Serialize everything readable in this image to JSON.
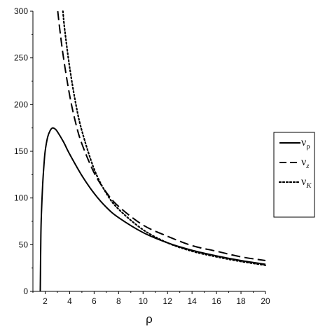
{
  "chart_data": {
    "type": "line",
    "title": "",
    "xlabel": "ρ",
    "ylabel": "",
    "xlim": [
      1,
      20
    ],
    "ylim": [
      0,
      300
    ],
    "xticks": [
      2,
      4,
      6,
      8,
      10,
      12,
      14,
      16,
      18,
      20
    ],
    "yticks": [
      0,
      50,
      100,
      150,
      200,
      250,
      300
    ],
    "grid": false,
    "legend_position": "right",
    "series": [
      {
        "name": "ν",
        "subscript": "ρ",
        "style": "solid",
        "color": "#000000",
        "x": [
          1.6,
          1.65,
          1.7,
          1.8,
          1.9,
          2.0,
          2.2,
          2.4,
          2.6,
          2.8,
          3.0,
          3.5,
          4.0,
          5.0,
          6.0,
          7.0,
          8.0,
          10.0,
          12.0,
          14.0,
          16.0,
          18.0,
          20.0
        ],
        "y": [
          0,
          60,
          85,
          115,
          135,
          150,
          165,
          172,
          175,
          174,
          171,
          160,
          147,
          124,
          105,
          90,
          79,
          63,
          52,
          44,
          38,
          33,
          29
        ]
      },
      {
        "name": "ν",
        "subscript": "z",
        "style": "dashed",
        "color": "#000000",
        "x": [
          3.03,
          3.2,
          3.5,
          4.0,
          4.5,
          5.0,
          6.0,
          7.0,
          8.0,
          10.0,
          12.0,
          14.0,
          16.0,
          18.0,
          20.0
        ],
        "y": [
          300,
          280,
          250,
          210,
          180,
          158,
          127,
          106,
          91,
          71,
          59,
          49,
          43,
          37,
          33
        ]
      },
      {
        "name": "ν",
        "subscript": "K",
        "style": "dotted",
        "color": "#000000",
        "x": [
          3.45,
          3.6,
          4.0,
          4.5,
          5.0,
          6.0,
          7.0,
          8.0,
          10.0,
          12.0,
          14.0,
          16.0,
          18.0,
          20.0
        ],
        "y": [
          300,
          280,
          240,
          201,
          172,
          131,
          105,
          88,
          66,
          52,
          43,
          37,
          32,
          28
        ]
      }
    ]
  }
}
